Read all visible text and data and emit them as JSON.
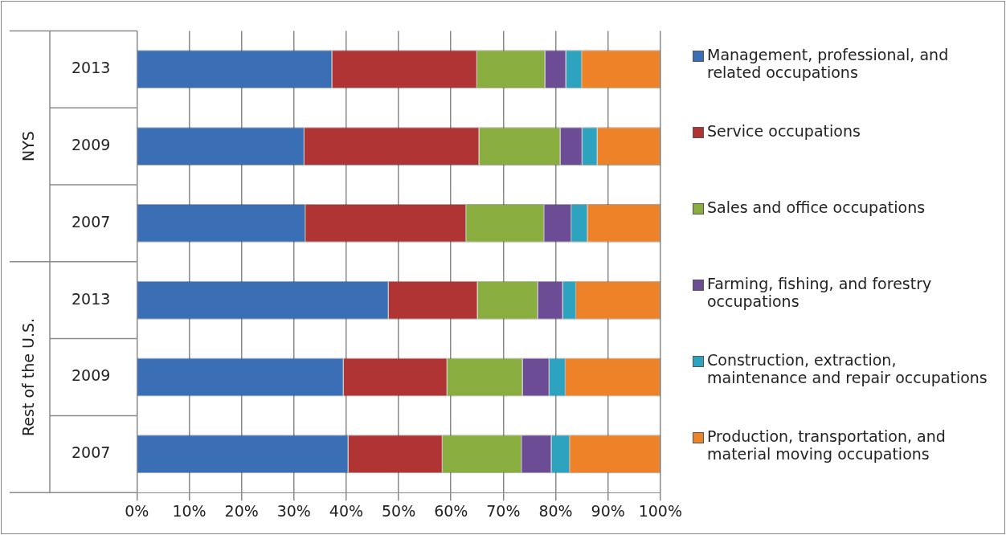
{
  "chart_data": {
    "type": "bar",
    "orientation": "horizontal",
    "stacked": true,
    "categories": [
      "2013",
      "2009",
      "2007",
      "2013",
      "2009",
      "2007"
    ],
    "annotations": [
      "NYS",
      "Rest of the U.S."
    ],
    "series": [
      {
        "name": "Management, professional, and related occupations",
        "color": "#3a6eb5",
        "values": [
          37.3,
          32.0,
          32.2,
          48.1,
          39.5,
          40.4
        ]
      },
      {
        "name": "Service occupations",
        "color": "#b13434",
        "values": [
          27.7,
          33.4,
          30.7,
          17.0,
          19.8,
          18.0
        ]
      },
      {
        "name": "Sales and office occupations",
        "color": "#8aad3f",
        "values": [
          13.0,
          15.5,
          14.9,
          11.5,
          14.4,
          15.1
        ]
      },
      {
        "name": "Farming, fishing, and forestry occupations",
        "color": "#6c4c94",
        "values": [
          4.0,
          4.2,
          5.2,
          4.8,
          5.1,
          5.7
        ]
      },
      {
        "name": "Construction, extraction, maintenance and repair occupations",
        "color": "#2ea3bf",
        "values": [
          3.0,
          2.9,
          3.1,
          2.5,
          3.1,
          3.5
        ]
      },
      {
        "name": "Production, transportation, and material moving occupations",
        "color": "#ee8228",
        "values": [
          15.0,
          12.0,
          13.9,
          16.1,
          18.1,
          17.3
        ]
      }
    ],
    "xlim": [
      0,
      100
    ],
    "xticks": [
      {
        "value": 0,
        "label": "0%"
      },
      {
        "value": 10,
        "label": "10%"
      },
      {
        "value": 20,
        "label": "20%"
      },
      {
        "value": 30,
        "label": "30%"
      },
      {
        "value": 40,
        "label": "40%"
      },
      {
        "value": 50,
        "label": "50%"
      },
      {
        "value": 60,
        "label": "60%"
      },
      {
        "value": 70,
        "label": "70%"
      },
      {
        "value": 80,
        "label": "80%"
      },
      {
        "value": 90,
        "label": "90%"
      },
      {
        "value": 100,
        "label": "100%"
      }
    ],
    "grid": "x",
    "legend": "right"
  }
}
